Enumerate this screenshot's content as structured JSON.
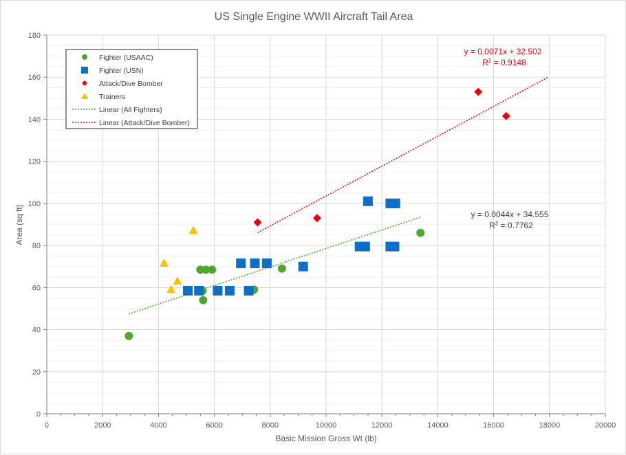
{
  "chart_data": {
    "type": "scatter",
    "title": "US Single Engine WWII Aircraft Tail Area",
    "xlabel": "Basic Mission Gross Wt (lb)",
    "ylabel": "Area (sq ft)",
    "xlim": [
      0,
      20000
    ],
    "ylim": [
      0,
      180
    ],
    "x_ticks": [
      "0",
      "2000",
      "4000",
      "6000",
      "8000",
      "10000",
      "12000",
      "14000",
      "16000",
      "18000",
      "20000"
    ],
    "y_ticks": [
      "0",
      "20",
      "40",
      "60",
      "80",
      "100",
      "120",
      "140",
      "160",
      "180"
    ],
    "grid": true,
    "legend_position": "top-left",
    "series": [
      {
        "name": "Fighter (USAAC)",
        "marker": "circle",
        "color": "#4ea72e",
        "points": [
          [
            2940,
            37
          ],
          [
            5500,
            68.5
          ],
          [
            5700,
            68.5
          ],
          [
            5920,
            68.5
          ],
          [
            5580,
            58.5
          ],
          [
            5600,
            54
          ],
          [
            7420,
            59
          ],
          [
            8420,
            69
          ],
          [
            13380,
            86
          ]
        ]
      },
      {
        "name": "Fighter (USN)",
        "marker": "square",
        "color": "#0f6fc6",
        "points": [
          [
            5050,
            58.5
          ],
          [
            5450,
            58.5
          ],
          [
            6120,
            58.5
          ],
          [
            6550,
            58.5
          ],
          [
            7230,
            58.5
          ],
          [
            6950,
            71.5
          ],
          [
            7450,
            71.5
          ],
          [
            7880,
            71.5
          ],
          [
            9180,
            70
          ],
          [
            11200,
            79.5
          ],
          [
            11400,
            79.5
          ],
          [
            12300,
            79.5
          ],
          [
            12450,
            79.5
          ],
          [
            11500,
            101
          ],
          [
            12300,
            100
          ],
          [
            12480,
            100
          ]
        ]
      },
      {
        "name": "Attack/Dive Bomber",
        "marker": "diamond",
        "color": "#e8000b",
        "points": [
          [
            7550,
            91
          ],
          [
            9680,
            93
          ],
          [
            15450,
            153
          ],
          [
            16450,
            141.5
          ]
        ]
      },
      {
        "name": "Trainers",
        "marker": "triangle",
        "color": "#ffc000",
        "points": [
          [
            4200,
            71.5
          ],
          [
            4450,
            59
          ],
          [
            4680,
            63
          ],
          [
            5250,
            87
          ]
        ]
      }
    ],
    "trendlines": [
      {
        "name": "Linear (All Fighters)",
        "color": "#4ea72e",
        "x_range": [
          2940,
          13380
        ],
        "slope": 0.0044,
        "intercept": 34.555,
        "equation": "y = 0.0044x + 34.555",
        "r2_prefix": "R",
        "r2_value": " = 0.7762"
      },
      {
        "name": "Linear (Attack/Dive Bomber)",
        "color": "#e8000b",
        "x_range": [
          7550,
          17950
        ],
        "slope": 0.0071,
        "intercept": 32.502,
        "equation": "y = 0.0071x + 32.502",
        "r2_prefix": "R",
        "r2_value": " = 0.9148"
      }
    ]
  }
}
